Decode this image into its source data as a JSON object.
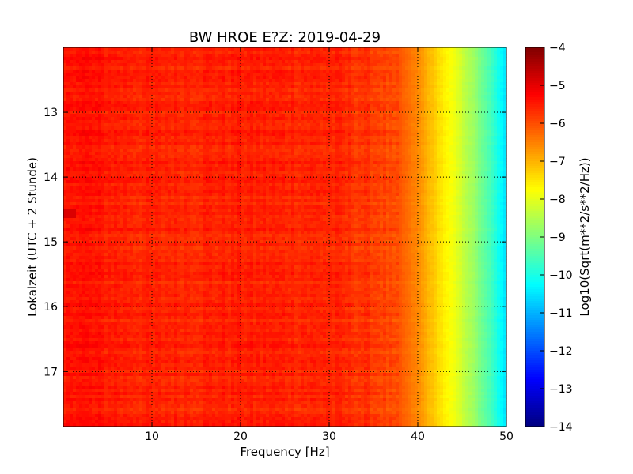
{
  "chart_data": {
    "type": "heatmap",
    "title": "BW HROE E?Z: 2019-04-29",
    "xlabel": "Frequency [Hz]",
    "ylabel": "Lokalzeit (UTC + 2 Stunde)",
    "colorbar_label": "Log10(Sqrt(m**2/s**2/Hz))",
    "colormap": "jet",
    "xlim": [
      0,
      50
    ],
    "ylim": [
      12.0,
      17.85
    ],
    "y_inverted": true,
    "x_ticks": [
      10,
      20,
      30,
      40,
      50
    ],
    "y_ticks": [
      13,
      14,
      15,
      16,
      17
    ],
    "colorbar_range": [
      -14,
      -4
    ],
    "colorbar_ticks": [
      -4,
      -5,
      -6,
      -7,
      -8,
      -9,
      -10,
      -11,
      -12,
      -13,
      -14
    ],
    "grid": true,
    "value_profile_by_frequency": {
      "frequency_hz": [
        0,
        1,
        5,
        10,
        20,
        30,
        35,
        38,
        40,
        42,
        44,
        46,
        48,
        49.5,
        50
      ],
      "log10_amplitude": [
        -5.6,
        -5.35,
        -5.5,
        -5.6,
        -5.55,
        -5.6,
        -5.8,
        -6.1,
        -6.6,
        -7.3,
        -7.9,
        -8.6,
        -9.5,
        -10.3,
        -10.6
      ]
    },
    "notable_features": [
      {
        "time": 14.55,
        "frequency_range_hz": [
          0,
          1.5
        ],
        "log10_amplitude": -4.9
      }
    ]
  }
}
